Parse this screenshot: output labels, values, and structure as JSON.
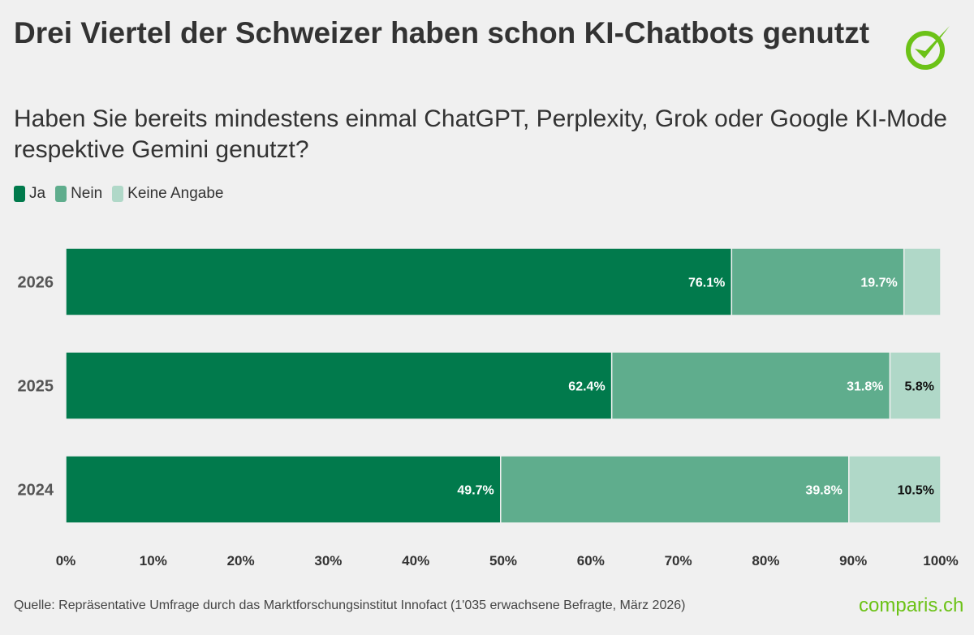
{
  "header": {
    "title": "Drei Viertel der Schweizer haben schon KI-Chatbots genutzt",
    "subtitle": "Haben Sie bereits mindestens einmal ChatGPT, Perplexity, Grok oder Google KI-Mode respektive Gemini genutzt?"
  },
  "footer": {
    "source": "Quelle: Repräsentative Umfrage durch das Marktforschungsinstitut Innofact (1'035 erwachsene Befragte, März 2026)",
    "brand": "comparis.ch"
  },
  "logo_icon": "check-circle-icon",
  "chart_data": {
    "type": "bar",
    "orientation": "horizontal",
    "stacked": true,
    "categories": [
      "2026",
      "2025",
      "2024"
    ],
    "series": [
      {
        "name": "Ja",
        "values": [
          76.1,
          62.4,
          49.7
        ],
        "color": "#017a4c",
        "labels": [
          "76.1%",
          "62.4%",
          "49.7%"
        ]
      },
      {
        "name": "Nein",
        "values": [
          19.7,
          31.8,
          39.8
        ],
        "color": "#5fad8d",
        "labels": [
          "19.7%",
          "31.8%",
          "39.8%"
        ]
      },
      {
        "name": "Keine Angabe",
        "values": [
          4.2,
          5.8,
          10.5
        ],
        "color": "#b0d8c8",
        "labels": [
          "",
          "5.8%",
          "10.5%"
        ]
      }
    ],
    "xlim": [
      0,
      100
    ],
    "xticks": [
      "0%",
      "10%",
      "20%",
      "30%",
      "40%",
      "50%",
      "60%",
      "70%",
      "80%",
      "90%",
      "100%"
    ],
    "grid": false,
    "legend": "top-left"
  }
}
